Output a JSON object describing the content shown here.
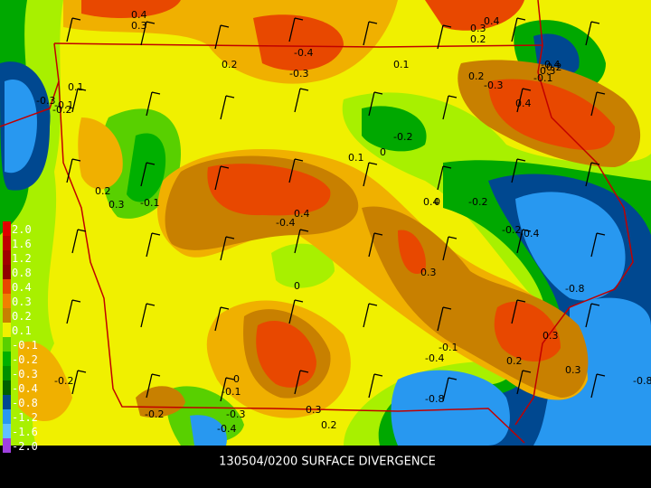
{
  "title": "130504/0200 SURFACE DIVERGENCE",
  "legend": {
    "labels": [
      "2.0",
      "1.6",
      "1.2",
      "0.8",
      "0.4",
      "0.3",
      "0.2",
      "0.1",
      "-0.1",
      "-0.2",
      "-0.3",
      "-0.4",
      "-0.8",
      "-1.2",
      "-1.6",
      "-2.0"
    ]
  },
  "contour_labels": [
    "0.4",
    "0.3",
    "0.2",
    "-0.4",
    "-0.3",
    "0.1",
    "0.3",
    "0.2",
    "0.4",
    "-0.3",
    "-0.2",
    "0.2",
    "0.3",
    "0.1",
    "0",
    "0.4",
    "-0.2",
    "-0.1",
    "0.1",
    "-0.1",
    "-0.2",
    "0.4",
    "0.3",
    "0",
    "-0.2",
    "-0.4",
    "-0.4",
    "0.3",
    "-0.8",
    "0",
    "-0.1",
    "-0.3",
    "0.4",
    "0.2",
    "0.3",
    "-0.2",
    "-0.4",
    "-0.1",
    "-0.4",
    "-0.8",
    "0.3",
    "0.2",
    "0",
    "-0.1",
    "-0.2",
    "-0.3",
    "-0.4",
    "-0.2",
    "0.2",
    "0.3",
    "-0.8"
  ]
}
